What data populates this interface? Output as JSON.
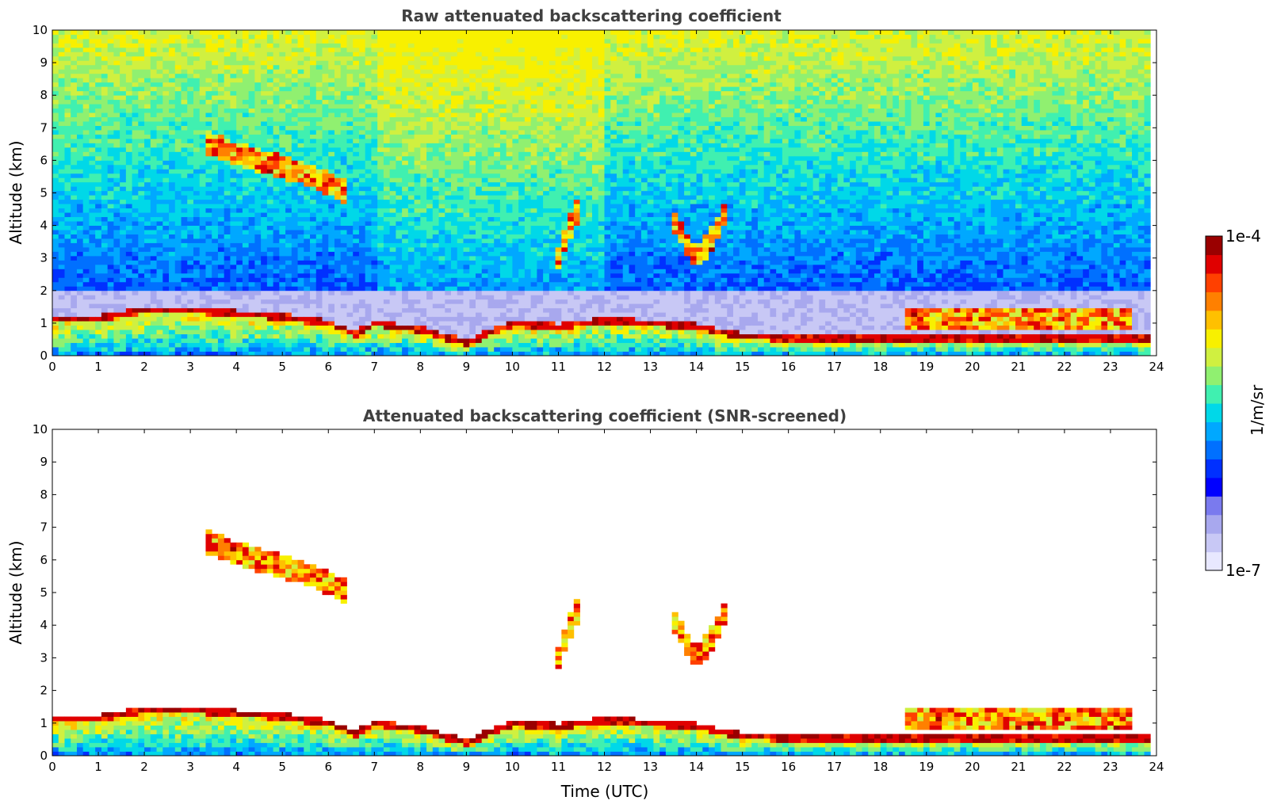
{
  "chart_data": [
    {
      "type": "heatmap",
      "title": "Raw attenuated backscattering coefficient",
      "xlabel": "",
      "ylabel": "Altitude (km)",
      "xlim": [
        0,
        24
      ],
      "ylim": [
        0,
        10
      ],
      "xticks": [
        0,
        1,
        2,
        3,
        4,
        5,
        6,
        7,
        8,
        9,
        10,
        11,
        12,
        13,
        14,
        15,
        16,
        17,
        18,
        19,
        20,
        21,
        22,
        23,
        24
      ],
      "yticks": [
        0,
        1,
        2,
        3,
        4,
        5,
        6,
        7,
        8,
        9,
        10
      ],
      "data_end_time": 23.8,
      "features": [
        {
          "name": "boundary-layer-top",
          "t": [
            0,
            1,
            2,
            3,
            4,
            5,
            6,
            6.6,
            7,
            8,
            9,
            10,
            11,
            12,
            13,
            14,
            15,
            16,
            17,
            18,
            19,
            20,
            21,
            22,
            23,
            23.8
          ],
          "alt": [
            1.0,
            1.05,
            1.3,
            1.3,
            1.2,
            1.1,
            0.9,
            0.6,
            0.9,
            0.7,
            0.3,
            0.9,
            0.8,
            1.0,
            0.9,
            0.8,
            0.5,
            0.45,
            0.4,
            0.4,
            0.45,
            0.45,
            0.45,
            0.45,
            0.45,
            0.45
          ]
        },
        {
          "name": "descending-cirrus",
          "t": [
            3.3,
            4.0,
            4.5,
            5.0,
            5.5,
            6.0,
            6.4
          ],
          "alt": [
            6.6,
            6.2,
            6.0,
            5.8,
            5.6,
            5.3,
            5.0
          ]
        },
        {
          "name": "mid-level-cloud-13.5-14.8h",
          "t": [
            13.5,
            13.8,
            14.0,
            14.3,
            14.6
          ],
          "alt": [
            4.2,
            3.4,
            3.0,
            3.5,
            4.3
          ]
        },
        {
          "name": "mid-level-cloud-11h",
          "t": [
            11.0,
            11.2,
            11.4
          ],
          "alt": [
            3.0,
            3.8,
            4.4
          ]
        },
        {
          "name": "shallow-cloud-18.5-23.5h",
          "t": [
            18.5,
            19.5,
            20.5,
            21.5,
            22.5,
            23.5
          ],
          "alt": [
            1.1,
            1.1,
            1.15,
            1.1,
            1.1,
            1.1
          ]
        }
      ]
    },
    {
      "type": "heatmap",
      "title": "Attenuated backscattering coefficient (SNR-screened)",
      "xlabel": "Time (UTC)",
      "ylabel": "Altitude (km)",
      "xlim": [
        0,
        24
      ],
      "ylim": [
        0,
        10
      ],
      "xticks": [
        0,
        1,
        2,
        3,
        4,
        5,
        6,
        7,
        8,
        9,
        10,
        11,
        12,
        13,
        14,
        15,
        16,
        17,
        18,
        19,
        20,
        21,
        22,
        23,
        24
      ],
      "yticks": [
        0,
        1,
        2,
        3,
        4,
        5,
        6,
        7,
        8,
        9,
        10
      ],
      "data_end_time": 23.8
    }
  ],
  "colorbar": {
    "label": "1/m/sr",
    "max_label": "1e-4",
    "min_label": "1e-7",
    "colors": [
      "#e8e8ff",
      "#c8c8f5",
      "#a8a8ee",
      "#7a7aee",
      "#0000ff",
      "#0030ff",
      "#0070ff",
      "#00a8ff",
      "#00d8e8",
      "#40f0b0",
      "#90f070",
      "#d0f040",
      "#f8f000",
      "#ffc000",
      "#ff8000",
      "#ff4000",
      "#e00000",
      "#9a0000"
    ]
  }
}
